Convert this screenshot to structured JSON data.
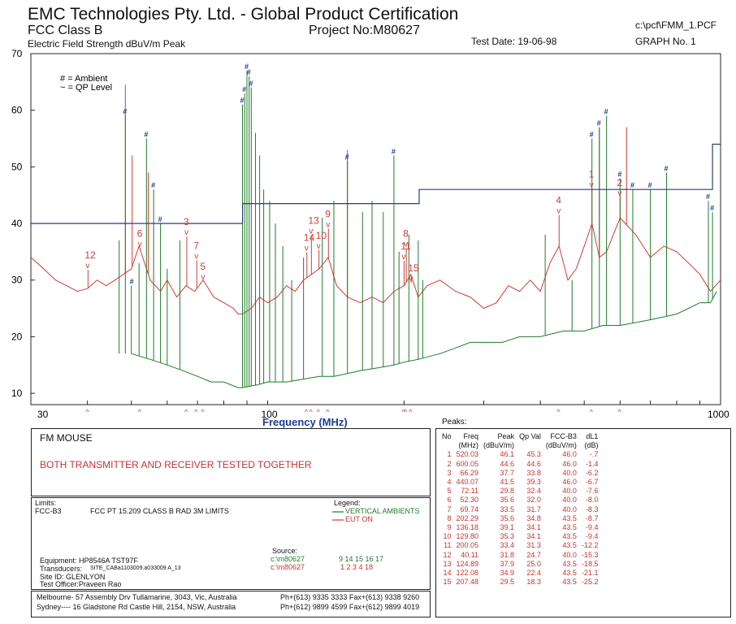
{
  "header": {
    "company": "EMC Technologies Pty. Ltd. -  Global Product Certification",
    "standard": "FCC Class B",
    "project": "Project No:M80627",
    "file_path": "c:\\pcf\\FMM_1.PCF",
    "y_label": "Electric Field Strength dBuV/m Peak",
    "test_date": "Test Date: 19-06-98",
    "graph_no": "GRAPH No.  1"
  },
  "legend_top": {
    "ambient": "# = Ambient",
    "qp": "~ = QP Level"
  },
  "colors": {
    "eut": "#d63a3a",
    "ambient": "#1e7d2a",
    "limit": "#2b3f6e",
    "marker": "#1d3a9a"
  },
  "chart_data": {
    "type": "line",
    "title": "Electric Field Strength dBuV/m Peak",
    "xlabel": "Frequency (MHz)",
    "ylabel": "dBuV/m",
    "x_scale": "log",
    "xlim": [
      30,
      1000
    ],
    "ylim": [
      8,
      70
    ],
    "x_ticks": [
      "30",
      "100",
      "1000"
    ],
    "y_ticks": [
      "10",
      "20",
      "30",
      "40",
      "50",
      "60",
      "70"
    ],
    "limit_line": {
      "name": "FCC-B3",
      "steps": [
        {
          "from": 30,
          "to": 88,
          "value": 40.0
        },
        {
          "from": 88,
          "to": 216,
          "value": 43.5
        },
        {
          "from": 216,
          "to": 960,
          "value": 46.0
        },
        {
          "from": 960,
          "to": 1000,
          "value": 54.0
        }
      ]
    },
    "series": [
      {
        "name": "EUT ON",
        "points": [
          [
            30,
            34
          ],
          [
            32,
            32
          ],
          [
            34,
            30
          ],
          [
            36,
            29
          ],
          [
            38,
            28
          ],
          [
            40,
            28.5
          ],
          [
            42,
            30
          ],
          [
            44,
            29
          ],
          [
            46,
            30
          ],
          [
            48,
            31
          ],
          [
            50,
            32
          ],
          [
            52,
            36
          ],
          [
            55,
            30
          ],
          [
            58,
            28
          ],
          [
            60,
            30
          ],
          [
            63,
            27
          ],
          [
            66,
            29
          ],
          [
            69,
            28
          ],
          [
            72,
            30
          ],
          [
            76,
            27
          ],
          [
            80,
            26
          ],
          [
            84,
            25
          ],
          [
            86,
            24
          ],
          [
            88,
            24
          ],
          [
            92,
            25
          ],
          [
            96,
            27
          ],
          [
            100,
            26
          ],
          [
            105,
            27
          ],
          [
            110,
            29
          ],
          [
            115,
            28
          ],
          [
            120,
            30
          ],
          [
            125,
            31
          ],
          [
            130,
            32
          ],
          [
            136,
            34
          ],
          [
            142,
            29
          ],
          [
            150,
            27
          ],
          [
            160,
            26
          ],
          [
            170,
            27
          ],
          [
            180,
            26
          ],
          [
            190,
            28
          ],
          [
            200,
            29
          ],
          [
            207,
            31
          ],
          [
            215,
            27
          ],
          [
            225,
            29
          ],
          [
            240,
            30
          ],
          [
            260,
            28
          ],
          [
            280,
            27
          ],
          [
            300,
            25
          ],
          [
            320,
            26
          ],
          [
            340,
            29
          ],
          [
            360,
            28
          ],
          [
            380,
            30
          ],
          [
            400,
            28
          ],
          [
            420,
            33
          ],
          [
            440,
            36
          ],
          [
            460,
            30
          ],
          [
            480,
            32
          ],
          [
            500,
            36
          ],
          [
            520,
            40
          ],
          [
            540,
            34
          ],
          [
            560,
            35
          ],
          [
            600,
            41
          ],
          [
            650,
            38
          ],
          [
            700,
            34
          ],
          [
            750,
            36
          ],
          [
            800,
            35
          ],
          [
            850,
            33
          ],
          [
            900,
            31
          ],
          [
            950,
            28
          ],
          [
            1000,
            30
          ]
        ],
        "spikes": [
          [
            40.11,
            31.8
          ],
          [
            48.5,
            64.5
          ],
          [
            50.2,
            52
          ],
          [
            52.3,
            35.6
          ],
          [
            54.5,
            49
          ],
          [
            66.29,
            37.7
          ],
          [
            69.74,
            33.5
          ],
          [
            72.11,
            29.8
          ],
          [
            122.08,
            34.9
          ],
          [
            124.89,
            37.9
          ],
          [
            129.8,
            35.3
          ],
          [
            136.18,
            39.1
          ],
          [
            150,
            53
          ],
          [
            200.05,
            33.4
          ],
          [
            202.29,
            35.6
          ],
          [
            207.48,
            29.5
          ],
          [
            440.07,
            41.5
          ],
          [
            520.03,
            46.1
          ],
          [
            540,
            57
          ],
          [
            600.05,
            44.6
          ],
          [
            620,
            57
          ]
        ]
      },
      {
        "name": "VERTICAL AMBIENTS",
        "points": [
          [
            50,
            17
          ],
          [
            55,
            16
          ],
          [
            60,
            15
          ],
          [
            65,
            14
          ],
          [
            70,
            13
          ],
          [
            75,
            12
          ],
          [
            80,
            12
          ],
          [
            86,
            11
          ],
          [
            88,
            11
          ],
          [
            95,
            11.5
          ],
          [
            100,
            12
          ],
          [
            110,
            12
          ],
          [
            120,
            12.5
          ],
          [
            130,
            13
          ],
          [
            140,
            13
          ],
          [
            150,
            13.5
          ],
          [
            160,
            14
          ],
          [
            175,
            14.5
          ],
          [
            190,
            15
          ],
          [
            200,
            15.5
          ],
          [
            215,
            16
          ],
          [
            240,
            17
          ],
          [
            260,
            18
          ],
          [
            280,
            19
          ],
          [
            300,
            19
          ],
          [
            330,
            19
          ],
          [
            360,
            20
          ],
          [
            400,
            20
          ],
          [
            450,
            21
          ],
          [
            500,
            21
          ],
          [
            550,
            22
          ],
          [
            600,
            22
          ],
          [
            650,
            22.5
          ],
          [
            700,
            23
          ],
          [
            750,
            23.5
          ],
          [
            800,
            24
          ],
          [
            850,
            25
          ],
          [
            900,
            26
          ],
          [
            950,
            26
          ],
          [
            980,
            28
          ]
        ],
        "spikes": [
          [
            47,
            37
          ],
          [
            48.5,
            59
          ],
          [
            50,
            29
          ],
          [
            52,
            33
          ],
          [
            54,
            55
          ],
          [
            56,
            46
          ],
          [
            58,
            40
          ],
          [
            60,
            32
          ],
          [
            64,
            37
          ],
          [
            88,
            61
          ],
          [
            89,
            63
          ],
          [
            90,
            67
          ],
          [
            91,
            66
          ],
          [
            92,
            64
          ],
          [
            94,
            56
          ],
          [
            96,
            52
          ],
          [
            98,
            46
          ],
          [
            101,
            44
          ],
          [
            104,
            40
          ],
          [
            108,
            36
          ],
          [
            113,
            30
          ],
          [
            120,
            34
          ],
          [
            132,
            41
          ],
          [
            140,
            44
          ],
          [
            150,
            51
          ],
          [
            162,
            42
          ],
          [
            170,
            44
          ],
          [
            180,
            42
          ],
          [
            190,
            52
          ],
          [
            195,
            35
          ],
          [
            205,
            38
          ],
          [
            215,
            37
          ],
          [
            220,
            30
          ],
          [
            410,
            38
          ],
          [
            470,
            30
          ],
          [
            520,
            55
          ],
          [
            540,
            57
          ],
          [
            560,
            59
          ],
          [
            600,
            48
          ],
          [
            640,
            46
          ],
          [
            700,
            46
          ],
          [
            760,
            49
          ],
          [
            940,
            44
          ],
          [
            960,
            42
          ]
        ]
      }
    ],
    "markers": [
      {
        "label": "1",
        "freq": 520.03,
        "level": 46.1
      },
      {
        "label": "2",
        "freq": 600.05,
        "level": 44.6
      },
      {
        "label": "3",
        "freq": 66.29,
        "level": 37.7
      },
      {
        "label": "4",
        "freq": 440.07,
        "level": 41.5
      },
      {
        "label": "5",
        "freq": 72.11,
        "level": 29.8
      },
      {
        "label": "6",
        "freq": 52.3,
        "level": 35.6
      },
      {
        "label": "7",
        "freq": 69.74,
        "level": 33.5
      },
      {
        "label": "8",
        "freq": 202.29,
        "level": 35.6
      },
      {
        "label": "9",
        "freq": 136.18,
        "level": 39.1
      },
      {
        "label": "10",
        "freq": 129.8,
        "level": 35.3
      },
      {
        "label": "11",
        "freq": 200.05,
        "level": 33.4
      },
      {
        "label": "12",
        "freq": 40.11,
        "level": 31.8
      },
      {
        "label": "13",
        "freq": 124.89,
        "level": 37.9
      },
      {
        "label": "14",
        "freq": 122.08,
        "level": 34.9
      },
      {
        "label": "15",
        "freq": 207.48,
        "level": 29.5
      }
    ],
    "ambient_tags": [
      48.5,
      50.2,
      54,
      56,
      58,
      88,
      89,
      90,
      91,
      92,
      150,
      190,
      520,
      540,
      560,
      600,
      640,
      700,
      760,
      940,
      960
    ]
  },
  "product": {
    "name": "FM MOUSE",
    "description": "BOTH TRANSMITTER AND RECEIVER TESTED TOGETHER"
  },
  "limits": {
    "heading": "Limits:",
    "code": "FCC-B3",
    "description": "FCC PT 15.209 CLASS B RAD 3M LIMITS",
    "legend_heading": "Legend:",
    "legend_vertical": "VERTICAL AMBIENTS",
    "legend_eut": "EUT ON",
    "equipment": "Equipment: HP8546A TST97F",
    "transducers_label": "Transducers:",
    "transducers": "SITE_CABa1103009.a033009  A_13",
    "site_id": "Site ID: GLENLYON",
    "officer": "Test Officer:Praveen Rao",
    "source_heading": "Source:",
    "source_green": "c:\\m80627",
    "source_red": "c:\\m80627",
    "source_green_nums": "9     14    15    16    17",
    "source_red_nums": "1      2      3      4     18"
  },
  "address": {
    "melbourne": "Melbourne- 57 Assembly Drv Tullamarine, 3043, Vic, Australia",
    "melbourne_ph": "Ph+(613) 9335 3333 Fax+(613) 9338 9260",
    "sydney": "Sydney---- 16 Gladstone Rd Castle Hill, 2154, NSW, Australia",
    "sydney_ph": "Ph+(612) 9899 4599 Fax+(612) 9899 4019"
  },
  "peaks": {
    "title": "Peaks:",
    "headers": [
      "No",
      "Freq\n(MHz)",
      "Peak\n(dBuV/m)",
      "Qp Val",
      "FCC-B3\n(dBuV/m)",
      "dL1\n(dB)"
    ],
    "rows": [
      [
        "1",
        "520.03",
        "46.1",
        "45.3",
        "46.0",
        "-.7"
      ],
      [
        "2",
        "600.05",
        "44.6",
        "44.6",
        "46.0",
        "-1.4"
      ],
      [
        "3",
        "66.29",
        "37.7",
        "33.8",
        "40.0",
        "-6.2"
      ],
      [
        "4",
        "440.07",
        "41.5",
        "39.3",
        "46.0",
        "-6.7"
      ],
      [
        "5",
        "72.11",
        "29.8",
        "32.4",
        "40.0",
        "-7.6"
      ],
      [
        "6",
        "52.30",
        "35.6",
        "32.0",
        "40.0",
        "-8.0"
      ],
      [
        "7",
        "69.74",
        "33.5",
        "31.7",
        "40.0",
        "-8.3"
      ],
      [
        "8",
        "202.29",
        "35.6",
        "34.8",
        "43.5",
        "-8.7"
      ],
      [
        "9",
        "136.18",
        "39.1",
        "34.1",
        "43.5",
        "-9.4"
      ],
      [
        "10",
        "129.80",
        "35.3",
        "34.1",
        "43.5",
        "-9.4"
      ],
      [
        "11",
        "200.05",
        "33.4",
        "31.3",
        "43.5",
        "-12.2"
      ],
      [
        "12",
        "40.11",
        "31.8",
        "24.7",
        "40.0",
        "-15.3"
      ],
      [
        "13",
        "124.89",
        "37.9",
        "25.0",
        "43.5",
        "-18.5"
      ],
      [
        "14",
        "122.08",
        "34.9",
        "22.4",
        "43.5",
        "-21.1"
      ],
      [
        "15",
        "207.48",
        "29.5",
        "18.3",
        "43.5",
        "-25.2"
      ]
    ]
  }
}
